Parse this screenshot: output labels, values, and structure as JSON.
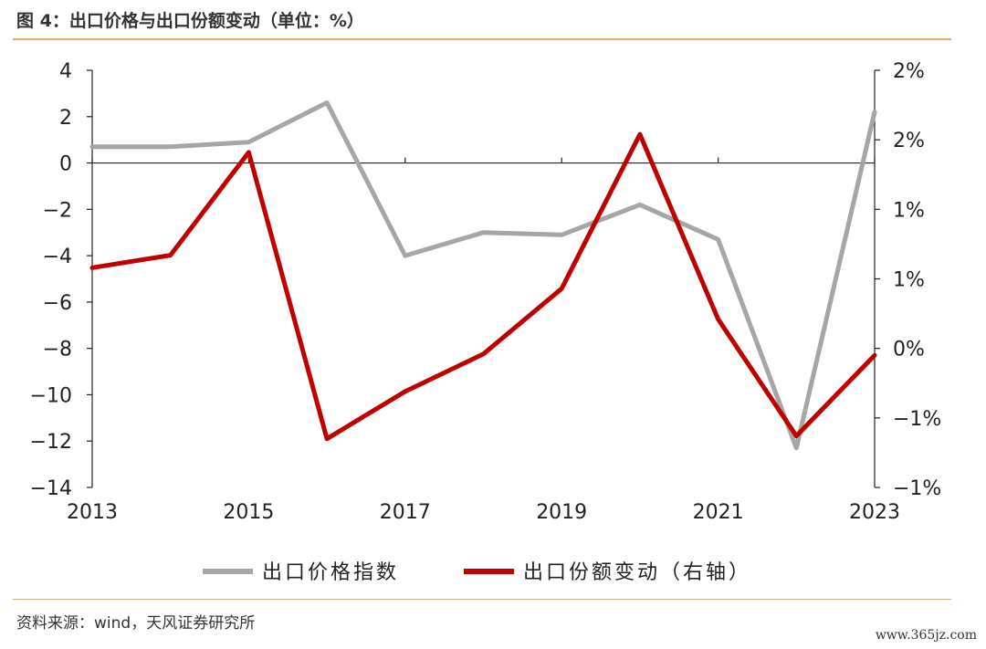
{
  "header": {
    "title": "图 4：出口价格与出口份额变动（单位：%）"
  },
  "footer": {
    "source": "资料来源：wind，天风证券研究所",
    "watermark": "www.365jz.com"
  },
  "chart_data": {
    "type": "line",
    "x": [
      2013,
      2014,
      2015,
      2016,
      2017,
      2018,
      2019,
      2020,
      2021,
      2022,
      2023
    ],
    "x_tick_labels": [
      "2013",
      "2015",
      "2017",
      "2019",
      "2021",
      "2023"
    ],
    "left_axis": {
      "ylim": [
        -14,
        4
      ],
      "ticks": [
        4,
        2,
        0,
        -2,
        -4,
        -6,
        -8,
        -10,
        -12,
        -14
      ],
      "tick_labels": [
        "4",
        "2",
        "0",
        "−2",
        "−4",
        "−6",
        "−8",
        "−10",
        "−12",
        "−14"
      ]
    },
    "right_axis": {
      "ylim": [
        -1.0,
        2.0
      ],
      "ticks": [
        2.0,
        1.5,
        1.0,
        0.5,
        0.0,
        -0.5,
        -1.0
      ],
      "tick_labels": [
        "2%",
        "2%",
        "1%",
        "1%",
        "0%",
        "−1%",
        "−1%"
      ]
    },
    "series": [
      {
        "name": "出口价格指数",
        "axis": "left",
        "color": "#a6a6a6",
        "values": [
          0.7,
          0.7,
          0.9,
          2.6,
          -4.0,
          -3.0,
          -3.1,
          -1.8,
          -3.3,
          -12.3,
          2.2
        ]
      },
      {
        "name": "出口份额变动（右轴）",
        "axis": "right",
        "color": "#c00000",
        "values": [
          0.58,
          0.67,
          1.41,
          -0.65,
          -0.31,
          -0.04,
          0.43,
          1.54,
          0.21,
          -0.63,
          -0.05
        ]
      }
    ],
    "legend_position": "bottom-center",
    "grid": false
  }
}
